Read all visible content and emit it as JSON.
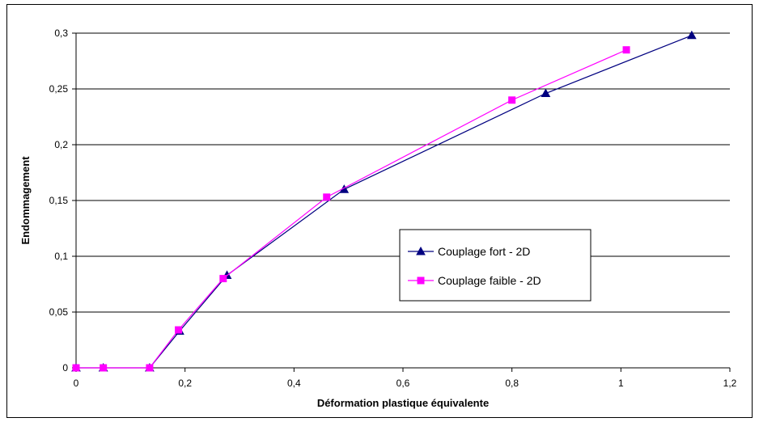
{
  "chart_data": {
    "type": "line",
    "title": "",
    "xlabel": "Déformation plastique équivalente",
    "ylabel": "Endommagement",
    "xlim": [
      0,
      1.2
    ],
    "ylim": [
      0,
      0.3
    ],
    "x_ticks": [
      0,
      0.2,
      0.4,
      0.6,
      0.8,
      1,
      1.2
    ],
    "x_tick_labels": [
      "0",
      "0,2",
      "0,4",
      "0,6",
      "0,8",
      "1",
      "1,2"
    ],
    "y_ticks": [
      0,
      0.05,
      0.1,
      0.15,
      0.2,
      0.25,
      0.3
    ],
    "y_tick_labels": [
      "0",
      "0,05",
      "0,1",
      "0,15",
      "0,2",
      "0,25",
      "0,3"
    ],
    "grid": "horizontal",
    "legend_position": "center-right",
    "series": [
      {
        "name": "Couplage fort - 2D",
        "color": "#000080",
        "marker": "triangle",
        "points": [
          [
            0,
            0
          ],
          [
            0.05,
            0
          ],
          [
            0.135,
            0
          ],
          [
            0.19,
            0.033
          ],
          [
            0.277,
            0.083
          ],
          [
            0.492,
            0.16
          ],
          [
            0.862,
            0.246
          ],
          [
            1.13,
            0.298
          ]
        ]
      },
      {
        "name": "Couplage faible - 2D",
        "color": "#FF00FF",
        "marker": "square",
        "points": [
          [
            0,
            0
          ],
          [
            0.05,
            0
          ],
          [
            0.135,
            0
          ],
          [
            0.188,
            0.034
          ],
          [
            0.27,
            0.08
          ],
          [
            0.46,
            0.153
          ],
          [
            0.8,
            0.24
          ],
          [
            1.01,
            0.285
          ]
        ]
      }
    ]
  }
}
